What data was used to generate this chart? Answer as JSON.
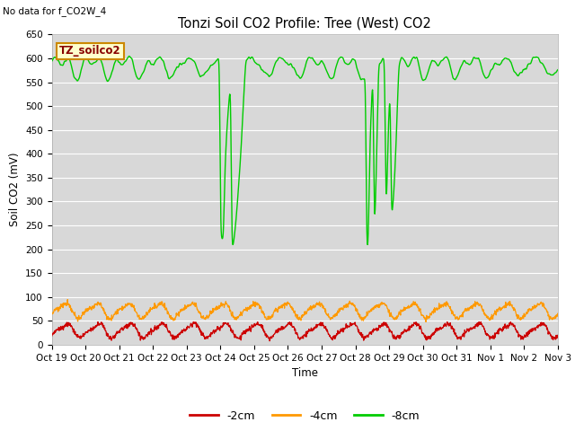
{
  "title": "Tonzi Soil CO2 Profile: Tree (West) CO2",
  "no_data_label": "No data for f_CO2W_4",
  "ylabel": "Soil CO2 (mV)",
  "xlabel": "Time",
  "group_label": "TZ_soilco2",
  "ylim": [
    0,
    650
  ],
  "yticks": [
    0,
    50,
    100,
    150,
    200,
    250,
    300,
    350,
    400,
    450,
    500,
    550,
    600,
    650
  ],
  "xtick_labels": [
    "Oct 19",
    "Oct 20",
    "Oct 21",
    "Oct 22",
    "Oct 23",
    "Oct 24",
    "Oct 25",
    "Oct 26",
    "Oct 27",
    "Oct 28",
    "Oct 29",
    "Oct 30",
    "Oct 31",
    "Nov 1",
    "Nov 2",
    "Nov 3"
  ],
  "legend_labels": [
    "-2cm",
    "-4cm",
    "-8cm"
  ],
  "legend_colors": [
    "#cc0000",
    "#ff9900",
    "#00cc00"
  ],
  "line_colors": [
    "#cc0000",
    "#ff9900",
    "#00cc00"
  ],
  "plot_bg_color": "#d8d8d8",
  "group_label_bg": "#ffffcc",
  "group_label_border": "#cc8800",
  "group_label_text": "#880000",
  "grid_color": "#ffffff",
  "figsize": [
    6.4,
    4.8
  ],
  "dpi": 100
}
